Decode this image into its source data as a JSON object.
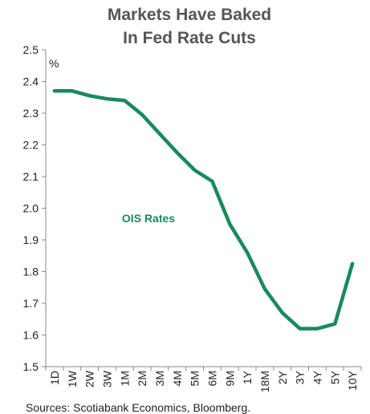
{
  "chart_data": {
    "type": "line",
    "title_lines": [
      "Markets Have Baked",
      "In Fed Rate Cuts"
    ],
    "unit_label": "%",
    "categories": [
      "1D",
      "1W",
      "2W",
      "3W",
      "1M",
      "2M",
      "3M",
      "4M",
      "5M",
      "6M",
      "9M",
      "1Y",
      "18M",
      "2Y",
      "3Y",
      "4Y",
      "5Y",
      "10Y"
    ],
    "series": [
      {
        "name": "OIS Rates",
        "color": "#1a8a5a",
        "values": [
          2.37,
          2.37,
          2.355,
          2.345,
          2.34,
          2.295,
          2.235,
          2.175,
          2.12,
          2.085,
          1.95,
          1.86,
          1.745,
          1.67,
          1.62,
          1.62,
          1.635,
          1.825
        ]
      }
    ],
    "ylim": [
      1.5,
      2.5
    ],
    "yticks": [
      "2.5",
      "2.4",
      "2.3",
      "2.2",
      "2.1",
      "2.0",
      "1.9",
      "1.8",
      "1.7",
      "1.6",
      "1.5"
    ],
    "grid": false,
    "source": "Sources: Scotiabank Economics, Bloomberg."
  }
}
